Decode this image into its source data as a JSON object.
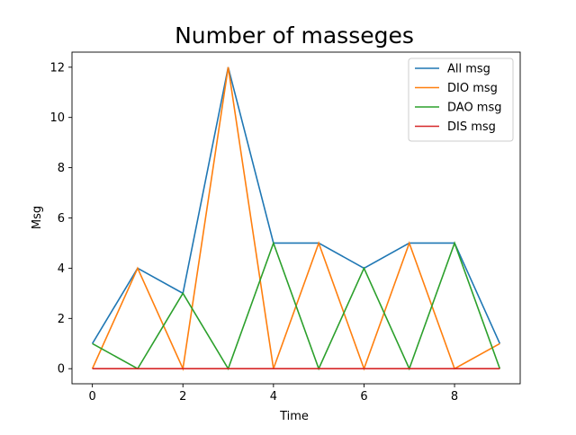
{
  "chart_data": {
    "type": "line",
    "title": "Number of masseges",
    "xlabel": "Time",
    "ylabel": "Msg",
    "x": [
      0,
      1,
      2,
      3,
      4,
      5,
      6,
      7,
      8,
      9
    ],
    "xlim": [
      -0.45,
      9.45
    ],
    "ylim": [
      -0.6,
      12.6
    ],
    "xticks": [
      0,
      2,
      4,
      6,
      8
    ],
    "yticks": [
      0,
      2,
      4,
      6,
      8,
      10,
      12
    ],
    "grid": false,
    "legend_position": "top-right",
    "series": [
      {
        "name": "All msg",
        "color": "#1f77b4",
        "values": [
          1,
          4,
          3,
          12,
          5,
          5,
          4,
          5,
          5,
          1
        ]
      },
      {
        "name": "DIO msg",
        "color": "#ff7f0e",
        "values": [
          0,
          4,
          0,
          12,
          0,
          5,
          0,
          5,
          0,
          1
        ]
      },
      {
        "name": "DAO msg",
        "color": "#2ca02c",
        "values": [
          1,
          0,
          3,
          0,
          5,
          0,
          4,
          0,
          5,
          0
        ]
      },
      {
        "name": "DIS msg",
        "color": "#d62728",
        "values": [
          0,
          0,
          0,
          0,
          0,
          0,
          0,
          0,
          0,
          0
        ]
      }
    ]
  }
}
